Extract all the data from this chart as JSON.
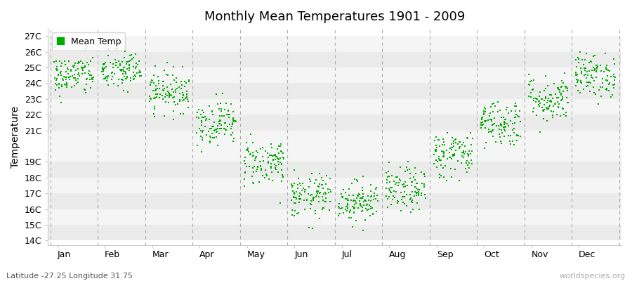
{
  "title": "Monthly Mean Temperatures 1901 - 2009",
  "ylabel": "Temperature",
  "xlabel_labels": [
    "Jan",
    "Feb",
    "Mar",
    "Apr",
    "May",
    "Jun",
    "Jul",
    "Aug",
    "Sep",
    "Oct",
    "Nov",
    "Dec"
  ],
  "bottom_left_label": "Latitude -27.25 Longitude 31.75",
  "bottom_right_label": "worldspecies.org",
  "ylim": [
    13.7,
    27.5
  ],
  "ytick_labels": [
    "14C",
    "15C",
    "16C",
    "17C",
    "18C",
    "19C",
    "21C",
    "22C",
    "23C",
    "24C",
    "25C",
    "26C",
    "27C"
  ],
  "ytick_values": [
    14,
    15,
    16,
    17,
    18,
    19,
    21,
    22,
    23,
    24,
    25,
    26,
    27
  ],
  "dot_color": "#00aa00",
  "background_color": "#ffffff",
  "band_colors": [
    "#ebebeb",
    "#f5f5f5"
  ],
  "legend_label": "Mean Temp",
  "monthly_means": [
    24.5,
    24.8,
    23.5,
    21.5,
    19.0,
    16.8,
    16.5,
    17.2,
    19.5,
    21.5,
    23.0,
    24.5
  ],
  "monthly_stds": [
    0.65,
    0.65,
    0.65,
    0.7,
    0.75,
    0.7,
    0.65,
    0.7,
    0.75,
    0.75,
    0.75,
    0.7
  ],
  "n_years": 109
}
